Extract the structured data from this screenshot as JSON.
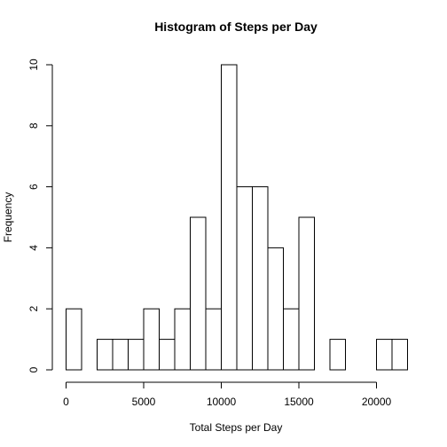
{
  "chart_data": {
    "type": "bar",
    "title": "Histogram of Steps per Day",
    "xlabel": "Total Steps per Day",
    "ylabel": "Frequency",
    "xlim": [
      0,
      22000
    ],
    "ylim": [
      0,
      10
    ],
    "bin_width": 1000,
    "bin_starts": [
      0,
      1000,
      2000,
      3000,
      4000,
      5000,
      6000,
      7000,
      8000,
      9000,
      10000,
      11000,
      12000,
      13000,
      14000,
      15000,
      16000,
      17000,
      18000,
      19000,
      20000,
      21000
    ],
    "values": [
      2,
      0,
      1,
      1,
      1,
      2,
      1,
      2,
      5,
      2,
      10,
      6,
      6,
      4,
      2,
      5,
      0,
      1,
      0,
      0,
      1,
      1
    ],
    "x_ticks": [
      0,
      5000,
      10000,
      15000,
      20000
    ],
    "x_tick_labels": [
      "0",
      "5000",
      "10000",
      "15000",
      "20000"
    ],
    "y_ticks": [
      0,
      2,
      4,
      6,
      8,
      10
    ],
    "y_tick_labels": [
      "0",
      "2",
      "4",
      "6",
      "8",
      "10"
    ],
    "grid": false,
    "legend": "none"
  }
}
